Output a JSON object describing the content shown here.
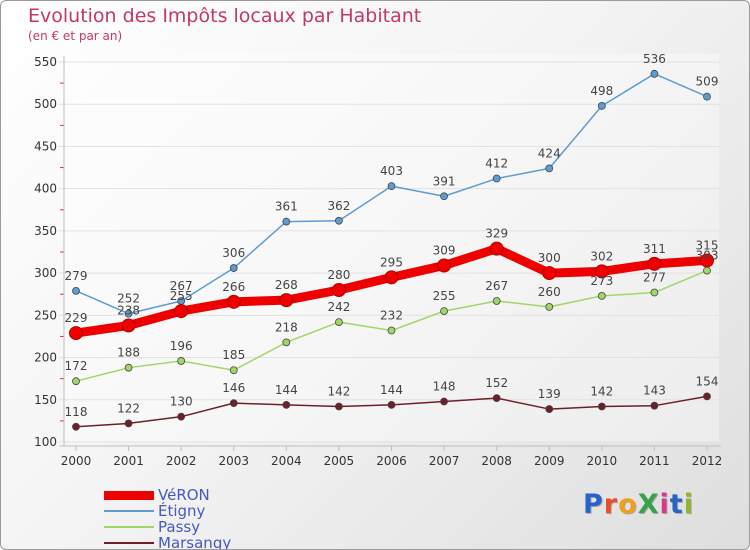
{
  "title": "Evolution des Impôts locaux par Habitant",
  "subtitle": "(en € et par an)",
  "logo": {
    "text": "ProXiti",
    "colors": [
      "#2a63c8",
      "#e8502a",
      "#f0a020",
      "#3aa04a",
      "#d63a8a",
      "#2a63c8",
      "#8ab82a"
    ]
  },
  "colors": {
    "title": "#c2386a",
    "axis_text": "#333333",
    "legend_text": "#4759c0"
  },
  "chart_data": {
    "type": "line",
    "title": "Evolution des Impôts locaux par Habitant",
    "subtitle": "(en € et par an)",
    "xlabel": "",
    "ylabel": "",
    "x": [
      "2000",
      "2001",
      "2002",
      "2003",
      "2004",
      "2005",
      "2006",
      "2007",
      "2008",
      "2009",
      "2010",
      "2011",
      "2012"
    ],
    "ylim": [
      100,
      550
    ],
    "yticks": [
      100,
      150,
      200,
      250,
      300,
      350,
      400,
      450,
      500,
      550
    ],
    "grid": true,
    "legend_position": "bottom-left",
    "series": [
      {
        "name": "VéRON",
        "color": "#ee0000",
        "values": [
          229,
          238,
          255,
          266,
          268,
          280,
          295,
          309,
          329,
          300,
          302,
          311,
          315
        ],
        "labels": [
          "229",
          "238",
          "255",
          "266",
          "268",
          "280",
          "295",
          "309",
          "329",
          "300",
          "302",
          "311",
          "315"
        ]
      },
      {
        "name": "Étigny",
        "color": "#5f9bd0",
        "values": [
          279,
          252,
          267,
          306,
          361,
          362,
          403,
          391,
          412,
          424,
          498,
          536,
          509
        ],
        "labels": [
          "279",
          "252",
          "267",
          "306",
          "361",
          "362",
          "403",
          "391",
          "412",
          "424",
          "498",
          "536",
          "509"
        ]
      },
      {
        "name": "Passy",
        "color": "#9fd66a",
        "values": [
          172,
          188,
          196,
          185,
          218,
          242,
          232,
          255,
          267,
          260,
          273,
          277,
          303
        ],
        "labels": [
          "172",
          "188",
          "196",
          "185",
          "218",
          "242",
          "232",
          "255",
          "267",
          "260",
          "273",
          "277",
          "303"
        ]
      },
      {
        "name": "Marsangy",
        "color": "#6e1f2a",
        "values": [
          118,
          122,
          130,
          146,
          144,
          142,
          144,
          148,
          152,
          139,
          142,
          143,
          154
        ],
        "labels": [
          "118",
          "122",
          "130",
          "146",
          "144",
          "142",
          "144",
          "148",
          "152",
          "139",
          "142",
          "143",
          "154"
        ]
      }
    ]
  }
}
